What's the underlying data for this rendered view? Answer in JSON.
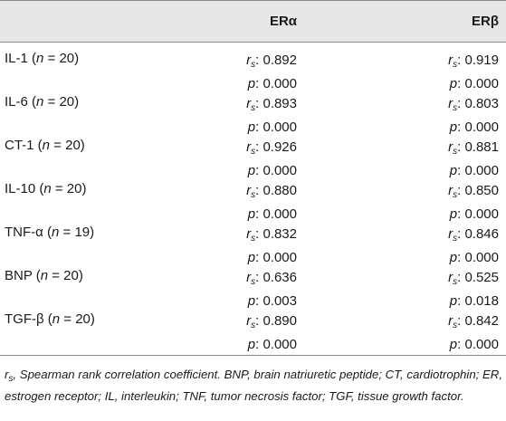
{
  "header": {
    "col_era": "ERα",
    "col_erb": "ERβ"
  },
  "rows": [
    {
      "label_pre": "IL-1 (",
      "label_post": " = 20)",
      "era_rs": ": 0.892",
      "era_p": ": 0.000",
      "erb_rs": ": 0.919",
      "erb_p": ": 0.000"
    },
    {
      "label_pre": "IL-6 (",
      "label_post": " = 20)",
      "era_rs": ": 0.893",
      "era_p": ": 0.000",
      "erb_rs": ": 0.803",
      "erb_p": ": 0.000"
    },
    {
      "label_pre": "CT-1 (",
      "label_post": " = 20)",
      "era_rs": ": 0.926",
      "era_p": ": 0.000",
      "erb_rs": ": 0.881",
      "erb_p": ": 0.000"
    },
    {
      "label_pre": "IL-10 (",
      "label_post": " = 20)",
      "era_rs": ": 0.880",
      "era_p": ": 0.000",
      "erb_rs": ": 0.850",
      "erb_p": ": 0.000"
    },
    {
      "label_pre": "TNF-α (",
      "label_post": " = 19)",
      "era_rs": ": 0.832",
      "era_p": ": 0.000",
      "erb_rs": ": 0.846",
      "erb_p": ": 0.000"
    },
    {
      "label_pre": "BNP (",
      "label_post": " = 20)",
      "era_rs": ": 0.636",
      "era_p": ": 0.003",
      "erb_rs": ": 0.525",
      "erb_p": ": 0.018"
    },
    {
      "label_pre": "TGF-β (",
      "label_post": " = 20)",
      "era_rs": ": 0.890",
      "era_p": ": 0.000",
      "erb_rs": ": 0.842",
      "erb_p": ": 0.000"
    }
  ],
  "symbols": {
    "r": "r",
    "s": "s",
    "p": "p",
    "n": "n"
  },
  "footnote": {
    "r": "r",
    "s": "s",
    "text": ", Spearman rank correlation coefficient. BNP, brain natriuretic peptide; CT, cardiotrophin; ER, estrogen receptor; IL, interleukin; TNF, tumor necrosis factor; TGF, tissue growth factor."
  }
}
